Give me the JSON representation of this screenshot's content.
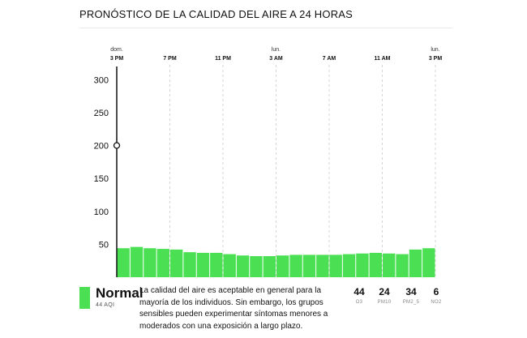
{
  "title": "PRONÓSTICO DE LA CALIDAD DEL AIRE A 24 HORAS",
  "chart_data": {
    "type": "bar",
    "x_ticks": [
      {
        "day": "dom.",
        "time": "3 PM",
        "hour_index": 0
      },
      {
        "day": "",
        "time": "7 PM",
        "hour_index": 4
      },
      {
        "day": "",
        "time": "11 PM",
        "hour_index": 8
      },
      {
        "day": "lun.",
        "time": "3 AM",
        "hour_index": 12
      },
      {
        "day": "",
        "time": "7 AM",
        "hour_index": 16
      },
      {
        "day": "",
        "time": "11 AM",
        "hour_index": 20
      },
      {
        "day": "lun.",
        "time": "3 PM",
        "hour_index": 24
      }
    ],
    "values": [
      44,
      46,
      44,
      43,
      42,
      38,
      37,
      37,
      35,
      33,
      32,
      32,
      33,
      34,
      34,
      34,
      34,
      35,
      36,
      37,
      36,
      35,
      42,
      44
    ],
    "yticks": [
      50,
      100,
      150,
      200,
      250,
      300
    ],
    "ylim": [
      0,
      320
    ],
    "current_value": 200,
    "grid": "vertical-dashed",
    "bar_color": "#4be053"
  },
  "legend": {
    "level": "Normal",
    "aqi": "44 AQI",
    "description": "La calidad del aire es aceptable en general para la mayoría de los individuos. Sin embargo, los grupos sensibles pueden experimentar síntomas menores a moderados con una exposición a largo plazo."
  },
  "pollutants": [
    {
      "value": "44",
      "name": "O3"
    },
    {
      "value": "24",
      "name": "PM10"
    },
    {
      "value": "34",
      "name": "PM2_5"
    },
    {
      "value": "6",
      "name": "NO2"
    }
  ]
}
